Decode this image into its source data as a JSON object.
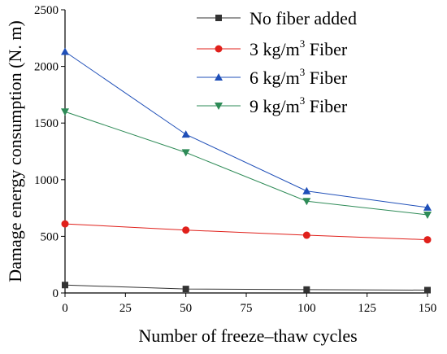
{
  "chart_data": {
    "type": "line",
    "title": "",
    "xlabel": "Number of freeze–thaw cycles",
    "ylabel": "Damage energy consumption (N. m)",
    "x": [
      0,
      50,
      100,
      150
    ],
    "xlim": [
      0,
      150
    ],
    "ylim": [
      0,
      2500
    ],
    "xticks": [
      "0",
      "25",
      "50",
      "75",
      "100",
      "125",
      "150"
    ],
    "yticks": [
      "0",
      "500",
      "1000",
      "1500",
      "2000",
      "2500"
    ],
    "grid": false,
    "legend_position": "top-right",
    "series": [
      {
        "name": "No fiber added",
        "name_main": "No fiber added",
        "name_sup": "",
        "name_tail": "",
        "marker": "square",
        "color": "#333333",
        "values": [
          70,
          35,
          30,
          25
        ]
      },
      {
        "name": "3 kg/m3 Fiber",
        "name_main": "3 kg/m",
        "name_sup": "3",
        "name_tail": " Fiber",
        "marker": "circle",
        "color": "#e0201b",
        "values": [
          610,
          555,
          510,
          470
        ]
      },
      {
        "name": "6 kg/m3 Fiber",
        "name_main": "6 kg/m",
        "name_sup": "3",
        "name_tail": " Fiber",
        "marker": "triangle-up",
        "color": "#1f4fb8",
        "values": [
          2130,
          1400,
          900,
          755
        ]
      },
      {
        "name": "9 kg/m3 Fiber",
        "name_main": "9 kg/m",
        "name_sup": "3",
        "name_tail": " Fiber",
        "marker": "triangle-down",
        "color": "#2e8b57",
        "values": [
          1600,
          1240,
          810,
          690
        ]
      }
    ]
  }
}
